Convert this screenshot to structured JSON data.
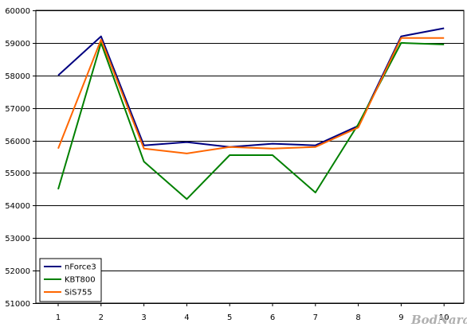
{
  "chart_data": {
    "type": "line",
    "title": "",
    "xlabel": "",
    "ylabel": "",
    "x": [
      1,
      2,
      3,
      4,
      5,
      6,
      7,
      8,
      9,
      10
    ],
    "ylim": [
      51000,
      60000
    ],
    "yticks": [
      51000,
      52000,
      53000,
      54000,
      55000,
      56000,
      57000,
      58000,
      59000,
      60000
    ],
    "grid": "horizontal",
    "legend_position": "bottom-left",
    "series": [
      {
        "name": "nForce3",
        "color": "#000080",
        "values": [
          58000,
          59200,
          55850,
          55950,
          55800,
          55900,
          55850,
          56450,
          59200,
          59450
        ]
      },
      {
        "name": "KBT800",
        "color": "#008000",
        "values": [
          54500,
          59000,
          55350,
          54200,
          55550,
          55550,
          54400,
          56500,
          59000,
          58950
        ]
      },
      {
        "name": "SiS755",
        "color": "#FF6600",
        "values": [
          55750,
          59100,
          55750,
          55600,
          55800,
          55750,
          55800,
          56400,
          59150,
          59150
        ]
      }
    ]
  },
  "watermark": {
    "text": "BodNara",
    "color": "#b0b0b0"
  }
}
